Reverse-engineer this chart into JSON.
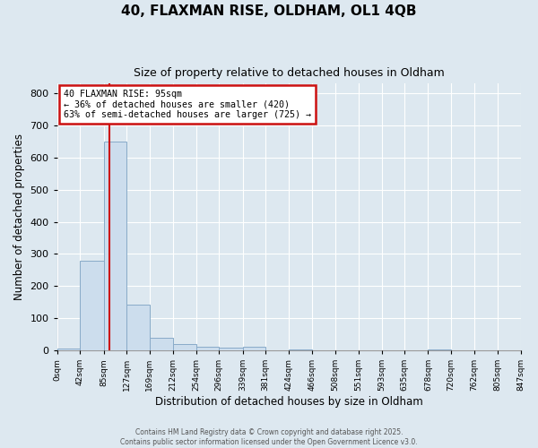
{
  "title": "40, FLAXMAN RISE, OLDHAM, OL1 4QB",
  "subtitle": "Size of property relative to detached houses in Oldham",
  "xlabel": "Distribution of detached houses by size in Oldham",
  "ylabel": "Number of detached properties",
  "bar_color": "#ccdded",
  "bar_edge_color": "#88aac8",
  "background_color": "#dde8f0",
  "plot_bg_color": "#dde8f0",
  "grid_color": "#ffffff",
  "bin_edges": [
    0,
    42,
    85,
    127,
    169,
    212,
    254,
    296,
    339,
    381,
    424,
    466,
    508,
    551,
    593,
    635,
    678,
    720,
    762,
    805,
    847
  ],
  "bin_labels": [
    "0sqm",
    "42sqm",
    "85sqm",
    "127sqm",
    "169sqm",
    "212sqm",
    "254sqm",
    "296sqm",
    "339sqm",
    "381sqm",
    "424sqm",
    "466sqm",
    "508sqm",
    "551sqm",
    "593sqm",
    "635sqm",
    "678sqm",
    "720sqm",
    "762sqm",
    "805sqm",
    "847sqm"
  ],
  "bar_heights": [
    5,
    280,
    650,
    143,
    38,
    20,
    10,
    8,
    10,
    0,
    3,
    0,
    0,
    0,
    0,
    0,
    2,
    0,
    0,
    0
  ],
  "ylim": [
    0,
    830
  ],
  "yticks": [
    0,
    100,
    200,
    300,
    400,
    500,
    600,
    700,
    800
  ],
  "property_line_x": 95,
  "property_line_color": "#cc1111",
  "annotation_line1": "40 FLAXMAN RISE: 95sqm",
  "annotation_line2": "← 36% of detached houses are smaller (420)",
  "annotation_line3": "63% of semi-detached houses are larger (725) →",
  "annotation_box_color": "#ffffff",
  "annotation_box_edge_color": "#cc1111",
  "footer_line1": "Contains HM Land Registry data © Crown copyright and database right 2025.",
  "footer_line2": "Contains public sector information licensed under the Open Government Licence v3.0."
}
